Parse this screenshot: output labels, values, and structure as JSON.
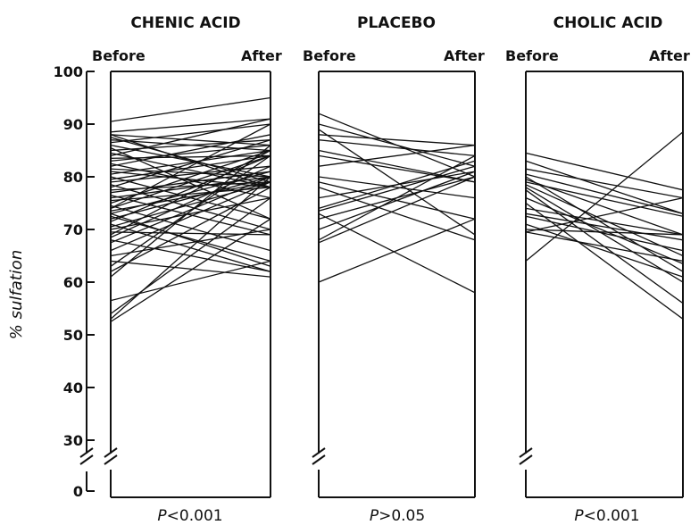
{
  "chart_data": {
    "type": "line",
    "ylabel": "% sulfation",
    "yticks": [
      0,
      30,
      40,
      50,
      60,
      70,
      80,
      90,
      100
    ],
    "ylim": [
      0,
      100
    ],
    "axis_break": true,
    "panels": [
      {
        "title": "CHENIC ACID",
        "before_label": "Before",
        "after_label": "After",
        "p_value": "<0.001",
        "pairs": [
          [
            88.5,
            91
          ],
          [
            88,
            78
          ],
          [
            88,
            86
          ],
          [
            87.5,
            79
          ],
          [
            87,
            85
          ],
          [
            86.5,
            90
          ],
          [
            86,
            80
          ],
          [
            85.5,
            72
          ],
          [
            85,
            87
          ],
          [
            84.5,
            78
          ],
          [
            84,
            91
          ],
          [
            83.5,
            84
          ],
          [
            83,
            86
          ],
          [
            82.5,
            76
          ],
          [
            82,
            88
          ],
          [
            81.5,
            80
          ],
          [
            81,
            78
          ],
          [
            80.5,
            85
          ],
          [
            80,
            72
          ],
          [
            79.5,
            84
          ],
          [
            79,
            82
          ],
          [
            78.5,
            70
          ],
          [
            78,
            87
          ],
          [
            77.5,
            79
          ],
          [
            77,
            81
          ],
          [
            76.5,
            69
          ],
          [
            76,
            80
          ],
          [
            75.5,
            78
          ],
          [
            75,
            85
          ],
          [
            74.5,
            66
          ],
          [
            74,
            84
          ],
          [
            73.5,
            79
          ],
          [
            73,
            81
          ],
          [
            72.5,
            64
          ],
          [
            72,
            80
          ],
          [
            71.5,
            84
          ],
          [
            71,
            62
          ],
          [
            70.5,
            79
          ],
          [
            70,
            76
          ],
          [
            69.5,
            69
          ],
          [
            69,
            85
          ],
          [
            68.5,
            82
          ],
          [
            68,
            62
          ],
          [
            67.5,
            80
          ],
          [
            66,
            79
          ],
          [
            65,
            70
          ],
          [
            64,
            61
          ],
          [
            63,
            84
          ],
          [
            62,
            78
          ],
          [
            61,
            86
          ],
          [
            56.5,
            64
          ],
          [
            54,
            76
          ],
          [
            53,
            80
          ],
          [
            52.5,
            72
          ],
          [
            90.5,
            95
          ],
          [
            74,
            90
          ],
          [
            73,
            63
          ]
        ]
      },
      {
        "title": "PLACEBO",
        "before_label": "Before",
        "after_label": "After",
        "p_value": ">0.05",
        "pairs": [
          [
            92,
            80
          ],
          [
            90,
            82
          ],
          [
            89,
            69
          ],
          [
            88,
            86
          ],
          [
            87,
            84
          ],
          [
            85,
            79
          ],
          [
            82,
            86
          ],
          [
            79,
            72
          ],
          [
            78,
            68
          ],
          [
            74,
            83
          ],
          [
            73.5,
            82
          ],
          [
            73,
            58
          ],
          [
            72,
            80
          ],
          [
            70,
            81
          ],
          [
            68,
            84
          ],
          [
            67.5,
            80
          ],
          [
            60,
            72
          ],
          [
            76,
            81
          ],
          [
            80,
            76
          ],
          [
            84,
            79
          ]
        ]
      },
      {
        "title": "CHOLIC ACID",
        "before_label": "Before",
        "after_label": "After",
        "p_value": "<0.001",
        "pairs": [
          [
            84.5,
            77.5
          ],
          [
            83,
            73
          ],
          [
            81.5,
            76
          ],
          [
            80.5,
            73
          ],
          [
            80,
            62
          ],
          [
            79.5,
            69
          ],
          [
            79,
            72.5
          ],
          [
            78.5,
            65
          ],
          [
            78,
            60
          ],
          [
            77.5,
            56
          ],
          [
            76,
            63.5
          ],
          [
            75,
            53
          ],
          [
            74,
            69
          ],
          [
            73,
            68
          ],
          [
            71,
            61
          ],
          [
            70,
            69
          ],
          [
            69.5,
            64
          ],
          [
            64,
            88.5
          ],
          [
            69.5,
            76
          ],
          [
            72.5,
            66
          ]
        ]
      }
    ]
  }
}
